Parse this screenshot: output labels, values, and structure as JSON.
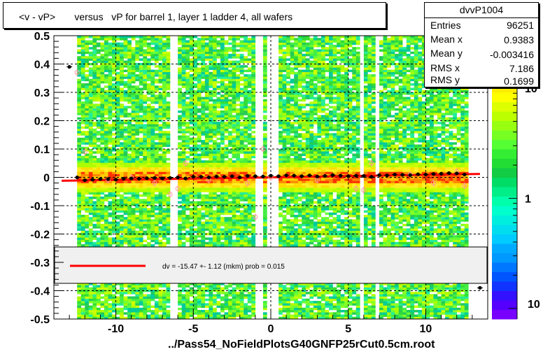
{
  "title": "<v - vP>       versus   vP for barrel 1, layer 1 ladder 4, all wafers",
  "x_axis_title": "../Pass54_NoFieldPlotsG40GNFP25rCut0.5cm.root",
  "stats": {
    "name": "dvvP1004",
    "rows": [
      {
        "label": "Entries",
        "value": "96251"
      },
      {
        "label": "Mean x",
        "value": "0.9383"
      },
      {
        "label": "Mean y",
        "value": "-0.003416"
      },
      {
        "label": "RMS x",
        "value": "7.186"
      },
      {
        "label": "RMS y",
        "value": "0.1699"
      }
    ]
  },
  "legend": {
    "fit_text": "dv =  -15.47 +-  1.12 (mkm) prob = 0.015",
    "line_color": "#ff0000"
  },
  "colors": {
    "fit_line": "#ff0000",
    "profile_points": "#000000",
    "alt_points": "#ff9999"
  },
  "chart_data": {
    "type": "heatmap",
    "xlim": [
      -14,
      14
    ],
    "ylim": [
      -0.5,
      0.5
    ],
    "x_ticks": [
      -10,
      -5,
      0,
      5,
      10
    ],
    "x_tick_labels": [
      "-10",
      "-5",
      "0",
      "5",
      "10"
    ],
    "y_ticks": [
      -0.5,
      -0.4,
      -0.3,
      -0.2,
      -0.1,
      0,
      0.1,
      0.2,
      0.3,
      0.4,
      0.5
    ],
    "y_tick_labels": [
      "-0.5",
      "-0.4",
      "-0.3",
      "-0.2",
      "-0.1",
      "0",
      "0.1",
      "0.2",
      "0.3",
      "0.4",
      "0.5"
    ],
    "grid": true,
    "colorbar": {
      "scale": "log",
      "tick_values": [
        1,
        10
      ],
      "tick_labels": [
        "1",
        "10"
      ],
      "bottom_label": "10",
      "range": [
        0.08,
        30
      ]
    },
    "occupied_x_ranges": [
      [
        -12.6,
        -0.4
      ],
      [
        0.4,
        12.6
      ]
    ],
    "empty_columns": [
      [
        -6.6,
        -6.0
      ],
      [
        -1.0,
        -0.5
      ],
      [
        5.6,
        6.0
      ],
      [
        6.6,
        7.0
      ]
    ],
    "fit_line": {
      "x": [
        -13.5,
        13.5
      ],
      "y": [
        -0.012,
        0.012
      ]
    },
    "profile_points": {
      "x": [
        -13.0,
        -12.5,
        -12.0,
        -11.5,
        -11.0,
        -10.5,
        -10.0,
        -9.5,
        -9.0,
        -8.5,
        -8.0,
        -7.5,
        -7.0,
        -6.5,
        -6.0,
        -5.5,
        -5.0,
        -4.5,
        -4.0,
        -3.5,
        -3.0,
        -2.5,
        -2.0,
        -1.5,
        -1.0,
        -0.5,
        0.0,
        0.5,
        1.0,
        1.5,
        2.0,
        2.5,
        3.0,
        3.5,
        4.0,
        4.5,
        5.0,
        5.5,
        6.0,
        6.5,
        7.0,
        7.5,
        8.0,
        8.5,
        9.0,
        9.5,
        10.0,
        10.5,
        11.0,
        11.5,
        12.0,
        12.5,
        13.5
      ],
      "y": [
        0.39,
        0.0,
        -0.01,
        -0.008,
        -0.006,
        -0.006,
        -0.008,
        -0.005,
        -0.004,
        -0.005,
        -0.003,
        -0.002,
        -0.004,
        -0.002,
        0.0,
        -0.004,
        0.002,
        0.002,
        0.0,
        0.003,
        0.002,
        0.004,
        0.0,
        0.005,
        0.004,
        0.003,
        0.006,
        0.004,
        0.007,
        0.006,
        0.004,
        0.007,
        0.003,
        0.005,
        0.008,
        0.006,
        0.004,
        0.006,
        0.005,
        0.002,
        0.008,
        0.007,
        0.01,
        0.009,
        0.008,
        0.011,
        0.01,
        0.012,
        0.013,
        0.015,
        0.014,
        0.01,
        -0.39
      ]
    },
    "alt_points": {
      "x": [
        -12.5,
        -12.0,
        -10.5,
        -9.0,
        -7.5,
        -6.5,
        -6.0,
        -5.5,
        -4.0,
        -1.5,
        -1.0,
        -0.5,
        0.0,
        3.0,
        5.5,
        6.0,
        6.5,
        9.0,
        10.5,
        12.0,
        12.5
      ],
      "y": [
        0.37,
        0.09,
        -0.01,
        0.0,
        -0.02,
        -0.06,
        -0.04,
        0.05,
        -0.01,
        -0.02,
        -0.14,
        0.1,
        0.0,
        -0.01,
        -0.04,
        -0.045,
        0.05,
        0.01,
        -0.02,
        0.02,
        -0.03
      ]
    }
  }
}
